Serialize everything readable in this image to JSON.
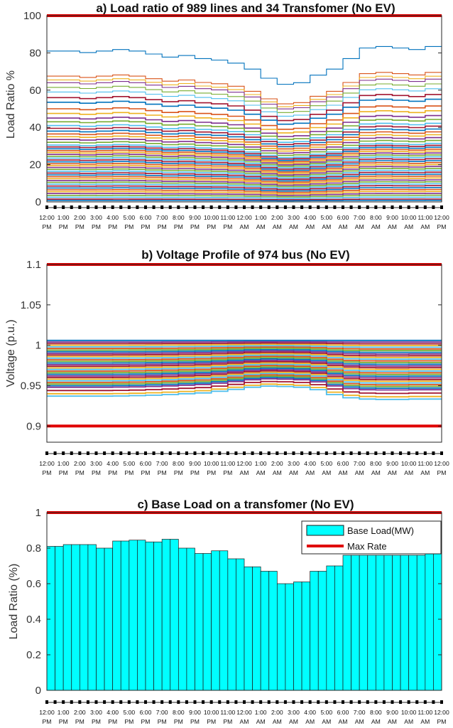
{
  "colors": {
    "max_line": "#e00000",
    "bar_fill": "#00ffff",
    "bar_stroke": "#1a1a1a",
    "axis": "#262626",
    "palette": [
      "#0072bd",
      "#d95319",
      "#edb120",
      "#7e2f8e",
      "#77ac30",
      "#4dbeee",
      "#a2142f"
    ]
  },
  "time_labels": {
    "top": [
      "12:00",
      "1:00",
      "2:00",
      "3:00",
      "4:00",
      "5:00",
      "6:00",
      "7:00",
      "8:00",
      "9:00",
      "10:00",
      "11:00",
      "12:00",
      "1:00",
      "2:00",
      "3:00",
      "4:00",
      "5:00",
      "6:00",
      "7:00",
      "8:00",
      "9:00",
      "10:00",
      "11:00",
      "12:00"
    ],
    "bottom": [
      "PM",
      "PM",
      "PM",
      "PM",
      "PM",
      "PM",
      "PM",
      "PM",
      "PM",
      "PM",
      "PM",
      "PM",
      "AM",
      "AM",
      "AM",
      "AM",
      "AM",
      "AM",
      "AM",
      "AM",
      "AM",
      "AM",
      "AM",
      "AM",
      "PM"
    ]
  },
  "chart_data": [
    {
      "type": "line",
      "title": "a) Load ratio of 989 lines and 34 Transfomer (No EV)",
      "xlabel": "",
      "ylabel": "Load Ratio %",
      "ylim": [
        0,
        100
      ],
      "yticks": [
        0,
        20,
        40,
        60,
        80,
        100
      ],
      "x_steps": 48,
      "grid": false,
      "max_rate": 100,
      "profile": [
        1.0,
        1.0,
        1.0,
        1.0,
        0.99,
        0.99,
        1.0,
        1.0,
        1.01,
        1.01,
        1.0,
        1.0,
        0.98,
        0.98,
        0.96,
        0.96,
        0.97,
        0.97,
        0.95,
        0.95,
        0.94,
        0.94,
        0.92,
        0.92,
        0.88,
        0.88,
        0.82,
        0.82,
        0.78,
        0.78,
        0.79,
        0.79,
        0.84,
        0.84,
        0.88,
        0.88,
        0.95,
        0.95,
        1.02,
        1.02,
        1.03,
        1.03,
        1.02,
        1.02,
        1.01,
        1.01,
        1.03,
        1.03
      ],
      "lines_at_start": [
        81.0,
        67.5,
        65.5,
        64.0,
        61.5,
        59.0,
        56.0,
        53.5,
        50.0,
        47.5,
        45.0,
        43.0,
        41.0,
        39.5,
        38.0,
        36.5,
        35.0,
        33.5,
        32.0,
        30.5,
        29.5,
        28.5,
        27.5,
        26.5,
        25.5,
        24.5,
        23.5,
        22.5,
        21.5,
        20.5,
        19.5,
        18.5,
        17.5,
        16.5,
        15.5,
        14.5,
        13.5,
        12.5,
        11.5,
        10.5,
        9.5,
        8.5,
        7.5,
        6.5,
        5.5,
        4.5,
        3.5,
        2.5,
        1.5,
        0.8
      ]
    },
    {
      "type": "line",
      "title": "b) Voltage Profile of 974 bus (No EV)",
      "xlabel": "",
      "ylabel": "Voltage (p.u.)",
      "ylim": [
        0.88,
        1.1
      ],
      "yticks": [
        0.9,
        0.95,
        1,
        1.05,
        1.1
      ],
      "ytick_labels": [
        "0.9",
        "0.95",
        "1",
        "1.05",
        "1.1"
      ],
      "x_steps": 48,
      "grid": false,
      "limits": [
        0.9,
        1.1
      ],
      "profile": [
        0,
        0,
        0,
        0,
        0,
        0,
        0,
        0,
        0.01,
        0.01,
        0.03,
        0.03,
        0.06,
        0.06,
        0.1,
        0.1,
        0.15,
        0.15,
        0.2,
        0.2,
        0.3,
        0.3,
        0.42,
        0.42,
        0.55,
        0.55,
        0.62,
        0.62,
        0.6,
        0.6,
        0.55,
        0.55,
        0.4,
        0.4,
        0.1,
        0.1,
        -0.1,
        -0.1,
        -0.18,
        -0.18,
        -0.2,
        -0.2,
        -0.2,
        -0.2,
        -0.18,
        -0.18,
        -0.18,
        -0.18
      ],
      "lines_at_start": [
        1.006,
        1.004,
        1.002,
        1.0,
        0.998,
        0.996,
        0.994,
        0.992,
        0.99,
        0.988,
        0.986,
        0.984,
        0.982,
        0.98,
        0.978,
        0.976,
        0.974,
        0.972,
        0.97,
        0.968,
        0.966,
        0.964,
        0.962,
        0.96,
        0.958,
        0.956,
        0.954,
        0.952,
        0.95,
        0.948,
        0.944,
        0.94,
        0.937
      ]
    },
    {
      "type": "bar",
      "title": "c) Base Load on a transfomer (No EV)",
      "xlabel": "",
      "ylabel": "Load Ratio (%)",
      "ylim": [
        0,
        1
      ],
      "yticks": [
        0,
        0.2,
        0.4,
        0.6,
        0.8,
        1
      ],
      "ytick_labels": [
        "0",
        "0.2",
        "0.4",
        "0.6",
        "0.8",
        "1"
      ],
      "grid": false,
      "legend_position": "top-right",
      "series": [
        {
          "name": "Base Load(MW)",
          "values": [
            0.81,
            0.81,
            0.82,
            0.82,
            0.82,
            0.82,
            0.8,
            0.8,
            0.84,
            0.84,
            0.845,
            0.845,
            0.835,
            0.835,
            0.85,
            0.85,
            0.8,
            0.8,
            0.77,
            0.77,
            0.785,
            0.785,
            0.74,
            0.74,
            0.695,
            0.695,
            0.67,
            0.67,
            0.6,
            0.6,
            0.61,
            0.61,
            0.67,
            0.67,
            0.7,
            0.7,
            0.76,
            0.76,
            0.76,
            0.76,
            0.76,
            0.76,
            0.76,
            0.76,
            0.76,
            0.76,
            0.865,
            0.865
          ]
        },
        {
          "name": "Max Rate",
          "values": [
            1
          ]
        }
      ]
    }
  ]
}
